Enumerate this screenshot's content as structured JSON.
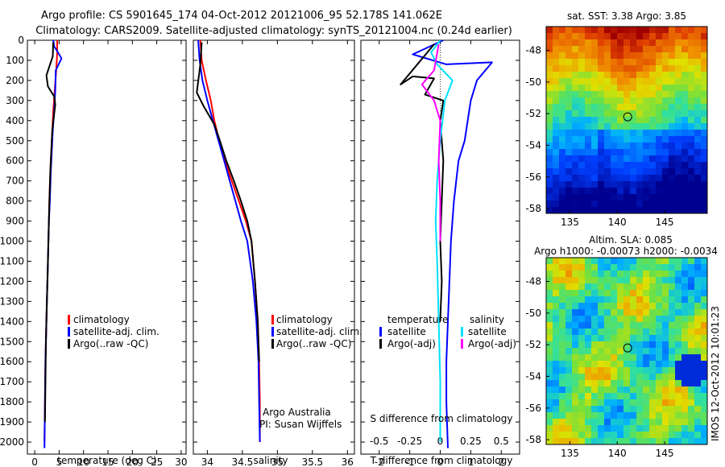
{
  "title": {
    "line1": "Argo profile: CS 5901645_174 04-Oct-2012 20121006_95 52.178S 141.062E",
    "line2": "Climatology: CARS2009. Satellite-adjusted climatology: synTS_20121004.nc (0.24d earlier)"
  },
  "colors": {
    "climatology": "#ff0000",
    "satellite": "#0000ff",
    "argo": "#000000",
    "salinity_satellite": "#00e0ff",
    "salinity_argo": "#ff00ff"
  },
  "chart_data": [
    {
      "type": "line",
      "panel": "temperature",
      "xlabel": "temperature (deg C)",
      "xlim": [
        -1.5,
        31
      ],
      "xticks": [
        "0",
        "5",
        "10",
        "15",
        "20",
        "25",
        "30"
      ],
      "xtick_values": [
        0,
        5,
        10,
        15,
        20,
        25,
        30
      ],
      "ylim": [
        0,
        2060
      ],
      "yticks": [
        "0",
        "100",
        "200",
        "300",
        "400",
        "500",
        "600",
        "700",
        "800",
        "900",
        "1000",
        "1100",
        "1200",
        "1300",
        "1400",
        "1500",
        "1600",
        "1700",
        "1800",
        "1900",
        "2000"
      ],
      "ytick_values": [
        0,
        100,
        200,
        300,
        400,
        500,
        600,
        700,
        800,
        900,
        1000,
        1100,
        1200,
        1300,
        1400,
        1500,
        1600,
        1700,
        1800,
        1900,
        2000
      ],
      "legend": [
        "climatology",
        "satellite-adj. clim.",
        "Argo(..raw -QC)"
      ],
      "series": [
        {
          "name": "climatology",
          "color": "#ff0000",
          "x": [
            4.6,
            4.6,
            4.4,
            4.1,
            3.8,
            3.6,
            3.4,
            3.2,
            3.0,
            2.9,
            2.8,
            2.7,
            2.6,
            2.5,
            2.4,
            2.3,
            2.2,
            2.1,
            2.0
          ],
          "y": [
            0,
            60,
            150,
            250,
            350,
            450,
            550,
            650,
            800,
            900,
            1000,
            1100,
            1200,
            1300,
            1400,
            1500,
            1600,
            1800,
            2000
          ]
        },
        {
          "name": "satellite-adj. clim.",
          "color": "#0000ff",
          "x": [
            3.8,
            4.0,
            5.5,
            4.3,
            4.2,
            4.0,
            3.7,
            3.5,
            3.3,
            3.1,
            2.9,
            2.8,
            2.7,
            2.5,
            2.4,
            2.3,
            2.2,
            2.1,
            2.0
          ],
          "y": [
            0,
            30,
            90,
            150,
            250,
            350,
            450,
            550,
            650,
            800,
            900,
            1000,
            1100,
            1300,
            1400,
            1500,
            1600,
            1800,
            2030
          ]
        },
        {
          "name": "Argo(..raw -QC)",
          "color": "#000000",
          "x": [
            3.8,
            3.7,
            2.4,
            2.7,
            4.0,
            4.2,
            3.6,
            3.4,
            3.2,
            3.0,
            2.9,
            2.8,
            2.7,
            2.6,
            2.5,
            2.4,
            2.3,
            2.2,
            2.1
          ],
          "y": [
            10,
            80,
            175,
            230,
            280,
            320,
            450,
            550,
            650,
            800,
            900,
            1000,
            1100,
            1200,
            1300,
            1400,
            1500,
            1700,
            1900
          ]
        }
      ]
    },
    {
      "type": "line",
      "panel": "salinity",
      "xlabel": "salinity",
      "xlim": [
        33.8,
        36.1
      ],
      "xticks": [
        "34",
        "34.5",
        "35",
        "35.5",
        "36"
      ],
      "xtick_values": [
        34,
        34.5,
        35,
        35.5,
        36
      ],
      "ylim": [
        0,
        2060
      ],
      "legend": [
        "climatology",
        "satellite-adj. clim.",
        "Argo(..raw -QC)"
      ],
      "notes": [
        "Argo Australia",
        "PI: Susan Wijffels"
      ],
      "series": [
        {
          "name": "climatology",
          "color": "#ff0000",
          "x": [
            33.9,
            33.92,
            33.98,
            34.05,
            34.1,
            34.17,
            34.25,
            34.35,
            34.45,
            34.55,
            34.63,
            34.68,
            34.72,
            34.74,
            34.75,
            34.75
          ],
          "y": [
            0,
            100,
            200,
            300,
            400,
            500,
            600,
            700,
            800,
            900,
            1000,
            1200,
            1400,
            1600,
            1800,
            2000
          ]
        },
        {
          "name": "satellite-adj. clim.",
          "color": "#0000ff",
          "x": [
            33.87,
            33.89,
            33.93,
            34.0,
            34.08,
            34.16,
            34.24,
            34.32,
            34.4,
            34.48,
            34.57,
            34.65,
            34.7,
            34.73,
            34.74,
            34.75
          ],
          "y": [
            0,
            100,
            200,
            300,
            400,
            500,
            600,
            700,
            800,
            900,
            1000,
            1200,
            1400,
            1600,
            1800,
            2000
          ]
        },
        {
          "name": "Argo(..raw -QC)",
          "color": "#000000",
          "x": [
            33.92,
            33.9,
            33.85,
            33.95,
            34.1,
            34.18,
            34.27,
            34.38,
            34.48,
            34.57,
            34.63,
            34.68,
            34.72,
            34.74
          ],
          "y": [
            10,
            120,
            260,
            330,
            420,
            500,
            600,
            700,
            800,
            900,
            1000,
            1200,
            1400,
            1600
          ]
        }
      ]
    },
    {
      "type": "line",
      "panel": "difference",
      "xlabel": "T difference from climatology",
      "xlabel_top": "S difference from climatology",
      "xlim": [
        -2.6,
        2.6
      ],
      "xticks": [
        "-2",
        "-1",
        "0",
        "1",
        "2"
      ],
      "xtick_values": [
        -2,
        -1,
        0,
        1,
        2
      ],
      "xticks_s": [
        "-0.5",
        "-0.25",
        "0",
        "0.25",
        "0.5"
      ],
      "xticks_s_values": [
        -2,
        -1,
        0,
        1,
        2
      ],
      "ylim": [
        0,
        2060
      ],
      "legend_t_title": "temperature",
      "legend_s_title": "salinity",
      "legend": [
        "satellite",
        "Argo(-adj)",
        "satellite",
        "Argo(-adj)"
      ],
      "series": [
        {
          "name": "temperature satellite",
          "color": "#0000ff",
          "x": [
            0.1,
            -0.9,
            0.2,
            1.7,
            1.2,
            1.0,
            0.9,
            0.8,
            0.6,
            0.45,
            0.35,
            0.3,
            0.25,
            0.2,
            0.2,
            0.25
          ],
          "y": [
            0,
            70,
            120,
            110,
            200,
            300,
            400,
            500,
            600,
            800,
            1000,
            1200,
            1400,
            1600,
            1800,
            2030
          ]
        },
        {
          "name": "temperature Argo",
          "color": "#000000",
          "x": [
            -0.2,
            -1.3,
            -0.9,
            -0.2,
            -0.5,
            0.1,
            0.0,
            0.1,
            0.05,
            0.0,
            0.05,
            0.0
          ],
          "y": [
            20,
            220,
            180,
            190,
            270,
            300,
            400,
            600,
            800,
            1000,
            1200,
            1400
          ]
        },
        {
          "name": "salinity satellite",
          "color": "#00e0ff",
          "x": [
            0.0,
            -0.3,
            -0.1,
            0.4,
            0.15,
            0.0,
            -0.1,
            -0.15,
            -0.1,
            -0.05,
            0.0,
            0.0
          ],
          "y": [
            0,
            60,
            120,
            200,
            300,
            500,
            700,
            900,
            1100,
            1400,
            1700,
            2000
          ]
        },
        {
          "name": "salinity Argo",
          "color": "#ff00ff",
          "x": [
            -0.05,
            -0.2,
            -0.6,
            -0.2,
            0.0,
            -0.05,
            0.0,
            0.0
          ],
          "y": [
            20,
            150,
            220,
            300,
            400,
            600,
            800,
            1000
          ]
        }
      ]
    },
    {
      "type": "heatmap",
      "panel": "sst_map",
      "title": "sat. SST: 3.38 Argo: 3.85",
      "xticks": [
        "135",
        "140",
        "145"
      ],
      "xtick_values": [
        135,
        140,
        145
      ],
      "yticks": [
        "-48",
        "-50",
        "-52",
        "-54",
        "-56",
        "-58"
      ],
      "ytick_values": [
        -48,
        -50,
        -52,
        -54,
        -56,
        -58
      ],
      "xlim": [
        132.5,
        149.5
      ],
      "ylim": [
        -58.3,
        -46.5
      ],
      "marker": [
        141.1,
        -52.2
      ]
    },
    {
      "type": "heatmap",
      "panel": "sla_map",
      "title": "Altim. SLA: 0.085",
      "subtitle": "Argo h1000: -0.00073 h2000: -0.0034",
      "side_label": "IMOS 12-Oct-2012 10:01:23",
      "xticks": [
        "135",
        "140",
        "145"
      ],
      "xtick_values": [
        135,
        140,
        145
      ],
      "yticks": [
        "-48",
        "-50",
        "-52",
        "-54",
        "-56",
        "-58"
      ],
      "ytick_values": [
        -48,
        -50,
        -52,
        -54,
        -56,
        -58
      ],
      "xlim": [
        132.5,
        149.5
      ],
      "ylim": [
        -58.3,
        -46.5
      ],
      "marker": [
        141.1,
        -52.2
      ]
    }
  ]
}
